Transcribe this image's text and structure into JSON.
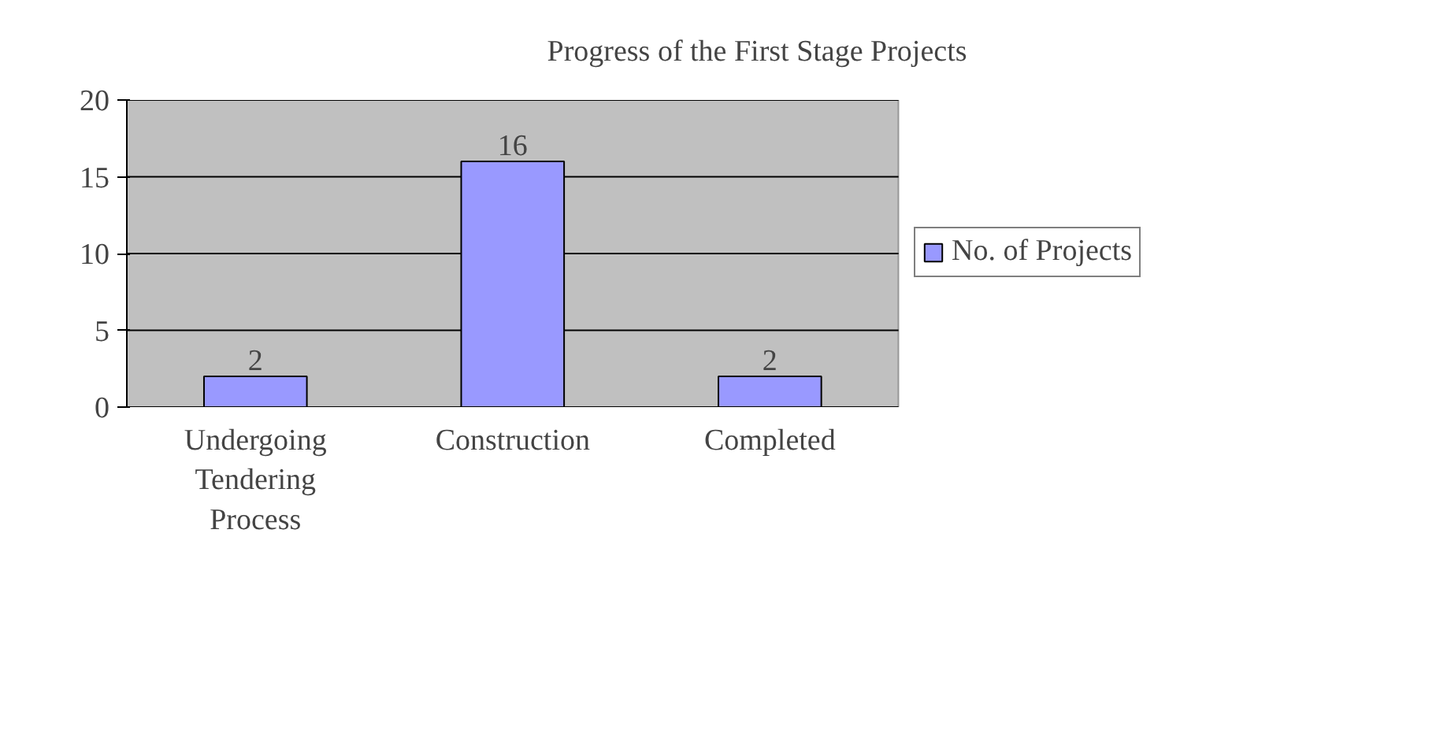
{
  "chart_data": {
    "type": "bar",
    "title": "Progress of the First Stage Projects",
    "categories": [
      "Undergoing Tendering Process",
      "Construction",
      "Completed"
    ],
    "series": [
      {
        "name": "No. of Projects",
        "color": "#9999ff",
        "values": [
          2,
          16,
          2
        ]
      }
    ],
    "ylim": [
      0,
      20
    ],
    "yticks": [
      0,
      5,
      10,
      15,
      20
    ],
    "grid": "y",
    "legend": "right",
    "data_labels": true
  }
}
